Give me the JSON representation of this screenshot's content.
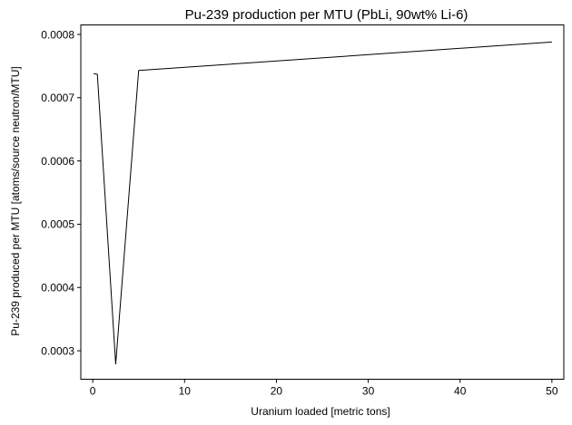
{
  "chart_data": {
    "type": "line",
    "title": "Pu-239 production per MTU (PbLi, 90wt% Li-6)",
    "xlabel": "Uranium loaded [metric tons]",
    "ylabel": "Pu-239 produced per MTU [atoms/source neutron/MTU]",
    "xlim": [
      -1.3,
      51.3
    ],
    "ylim": [
      0.000255,
      0.000815
    ],
    "xticks": [
      0,
      10,
      20,
      30,
      40,
      50
    ],
    "xtick_labels": [
      "0",
      "10",
      "20",
      "30",
      "40",
      "50"
    ],
    "yticks": [
      0.0003,
      0.0004,
      0.0005,
      0.0006,
      0.0007,
      0.0008
    ],
    "ytick_labels": [
      "0.0003",
      "0.0004",
      "0.0005",
      "0.0006",
      "0.0007",
      "0.0008"
    ],
    "grid": false,
    "line_color": "#000000",
    "series": [
      {
        "x": [
          0.096,
          0.5,
          2.5,
          5.0,
          50.0
        ],
        "y": [
          0.000738,
          0.000737,
          0.000279,
          0.000743,
          0.000788
        ]
      }
    ]
  }
}
